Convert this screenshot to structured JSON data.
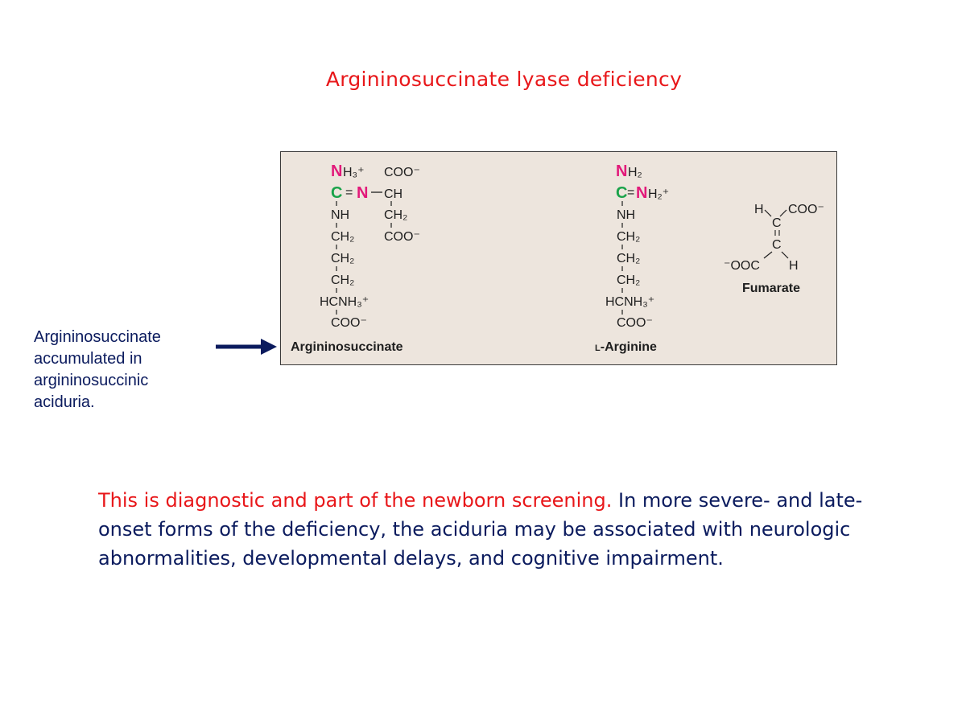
{
  "slide": {
    "title": "Argininosuccinate lyase deficiency",
    "side_caption": "Argininosuccinate accumulated in argininosuccinic aciduria.",
    "body_highlight": "This is diagnostic and part of the newborn screening.",
    "body_rest": " In more severe- and late-onset forms of the deficiency, the aciduria may be associated with neurologic abnormalities, developmental delays, and cognitive impairment."
  },
  "diagram": {
    "compounds": [
      {
        "name": "Argininosuccinate"
      },
      {
        "name_prefix": "L",
        "name": "-Arginine"
      },
      {
        "name": "Fumarate"
      }
    ],
    "atoms": {
      "N": "N",
      "C": "C"
    },
    "groups": {
      "NH3_plus": "H₃⁺",
      "COO_minus": "COO⁻",
      "CH": "CH",
      "CH2": "CH₂",
      "NH": "NH",
      "HCNH3": "HCNH₃⁺",
      "NH2": "H₂",
      "NH2_plus": "H₂⁺",
      "H": "H",
      "OOC": "⁻OOC",
      "eq": "=",
      "dash": "–"
    }
  },
  "colors": {
    "title": "#e8171a",
    "body": "#0b1b5e",
    "highlight": "#e8171a",
    "nitrogen": "#e2197a",
    "carbon": "#1aa34a",
    "panel_bg": "#ede5dd",
    "arrow": "#0b1b5e"
  }
}
